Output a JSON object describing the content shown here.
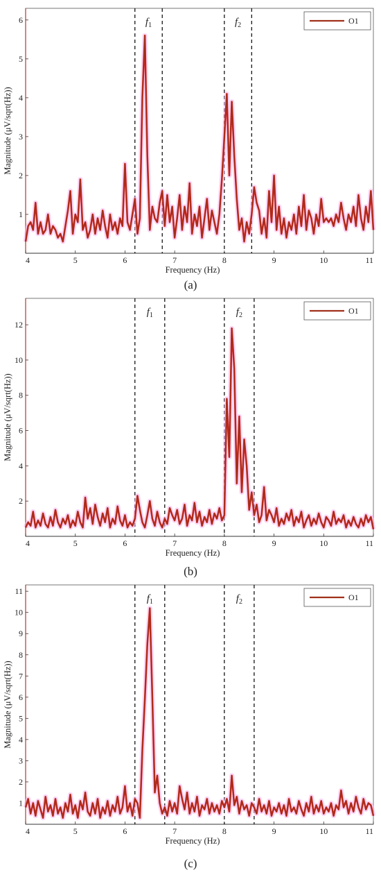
{
  "figure": {
    "panel_labels": [
      "(a)",
      "(b)",
      "(c)"
    ]
  },
  "colors": {
    "line": "#a0301a",
    "line_highlight": "#e0201e",
    "glow": "#f6b4f0",
    "axis": "#b23a2a",
    "box": "#555555",
    "band_line": "#000000"
  },
  "chart_data": [
    {
      "type": "line",
      "panel": "(a)",
      "xlabel": "Frequency (Hz)",
      "ylabel": "Magnitude  (μV/sqrt(Hz))",
      "xlim": [
        4,
        11
      ],
      "ylim": [
        0,
        6.3
      ],
      "xticks": [
        "4",
        "5",
        "6",
        "7",
        "8",
        "9",
        "10",
        "11"
      ],
      "yticks": [
        "1",
        "2",
        "3",
        "4",
        "5",
        "6"
      ],
      "legend": {
        "position": "top-right",
        "entries": [
          "O1"
        ]
      },
      "bands": [
        {
          "label": "f",
          "sub": "1",
          "from": 6.2,
          "to": 6.75
        },
        {
          "label": "f",
          "sub": "2",
          "from": 8.0,
          "to": 8.55
        }
      ],
      "series": [
        {
          "name": "O1",
          "x": [
            4.0,
            4.05,
            4.1,
            4.15,
            4.2,
            4.25,
            4.3,
            4.35,
            4.4,
            4.45,
            4.5,
            4.55,
            4.6,
            4.65,
            4.7,
            4.75,
            4.8,
            4.85,
            4.9,
            4.95,
            5.0,
            5.05,
            5.1,
            5.15,
            5.2,
            5.25,
            5.3,
            5.35,
            5.4,
            5.45,
            5.5,
            5.55,
            5.6,
            5.65,
            5.7,
            5.75,
            5.8,
            5.85,
            5.9,
            5.95,
            6.0,
            6.05,
            6.1,
            6.15,
            6.2,
            6.25,
            6.3,
            6.35,
            6.4,
            6.45,
            6.5,
            6.55,
            6.6,
            6.65,
            6.7,
            6.75,
            6.8,
            6.85,
            6.9,
            6.95,
            7.0,
            7.05,
            7.1,
            7.15,
            7.2,
            7.25,
            7.3,
            7.35,
            7.4,
            7.45,
            7.5,
            7.55,
            7.6,
            7.65,
            7.7,
            7.75,
            7.8,
            7.85,
            7.9,
            7.95,
            8.0,
            8.05,
            8.1,
            8.15,
            8.2,
            8.25,
            8.3,
            8.35,
            8.4,
            8.45,
            8.5,
            8.55,
            8.6,
            8.65,
            8.7,
            8.75,
            8.8,
            8.85,
            8.9,
            8.95,
            9.0,
            9.05,
            9.1,
            9.15,
            9.2,
            9.25,
            9.3,
            9.35,
            9.4,
            9.45,
            9.5,
            9.55,
            9.6,
            9.65,
            9.7,
            9.75,
            9.8,
            9.85,
            9.9,
            9.95,
            10.0,
            10.05,
            10.1,
            10.15,
            10.2,
            10.25,
            10.3,
            10.35,
            10.4,
            10.45,
            10.5,
            10.55,
            10.6,
            10.65,
            10.7,
            10.75,
            10.8,
            10.85,
            10.9,
            10.95,
            11.0
          ],
          "y": [
            0.3,
            0.7,
            0.8,
            0.6,
            1.3,
            0.5,
            0.8,
            0.5,
            0.6,
            1.0,
            0.5,
            0.7,
            0.6,
            0.4,
            0.5,
            0.3,
            0.7,
            1.1,
            1.6,
            0.5,
            1.0,
            0.8,
            1.9,
            0.6,
            0.8,
            0.4,
            0.6,
            1.0,
            0.5,
            0.9,
            0.6,
            1.1,
            0.7,
            0.4,
            1.0,
            0.6,
            0.8,
            0.5,
            0.9,
            0.7,
            2.3,
            0.8,
            0.6,
            1.0,
            1.4,
            0.5,
            0.9,
            4.0,
            5.6,
            2.5,
            0.6,
            1.2,
            0.9,
            0.8,
            1.3,
            1.6,
            0.7,
            1.5,
            0.8,
            1.2,
            0.4,
            0.9,
            1.5,
            0.6,
            1.2,
            0.8,
            1.8,
            0.5,
            1.0,
            0.7,
            1.2,
            0.4,
            0.9,
            1.4,
            0.6,
            1.1,
            0.8,
            0.5,
            1.0,
            1.9,
            3.0,
            4.1,
            2.0,
            3.9,
            2.5,
            1.4,
            0.6,
            0.9,
            0.3,
            0.8,
            0.5,
            1.0,
            1.7,
            1.3,
            1.1,
            0.5,
            0.9,
            0.4,
            1.6,
            0.8,
            2.0,
            0.6,
            1.2,
            0.5,
            0.9,
            0.4,
            0.8,
            0.6,
            1.0,
            0.5,
            1.2,
            0.7,
            1.5,
            0.6,
            1.1,
            0.9,
            0.5,
            1.0,
            0.7,
            1.4,
            0.8,
            0.9,
            0.8,
            0.9,
            0.7,
            1.0,
            0.8,
            1.3,
            0.9,
            0.6,
            1.0,
            0.8,
            1.2,
            0.7,
            1.5,
            0.9,
            0.6,
            1.2,
            0.8,
            1.6,
            0.6
          ]
        }
      ]
    },
    {
      "type": "line",
      "panel": "(b)",
      "xlabel": "Frequency (Hz)",
      "ylabel": "Magnitude  (μV/sqrt(Hz))",
      "xlim": [
        4,
        11
      ],
      "ylim": [
        0,
        13.5
      ],
      "xticks": [
        "4",
        "5",
        "6",
        "7",
        "8",
        "9",
        "10",
        "11"
      ],
      "yticks": [
        "2",
        "4",
        "6",
        "8",
        "10",
        "12"
      ],
      "legend": {
        "position": "top-right",
        "entries": [
          "O1"
        ]
      },
      "bands": [
        {
          "label": "f",
          "sub": "1",
          "from": 6.2,
          "to": 6.8
        },
        {
          "label": "f",
          "sub": "2",
          "from": 8.0,
          "to": 8.6
        }
      ],
      "series": [
        {
          "name": "O1",
          "x": [
            4.0,
            4.05,
            4.1,
            4.15,
            4.2,
            4.25,
            4.3,
            4.35,
            4.4,
            4.45,
            4.5,
            4.55,
            4.6,
            4.65,
            4.7,
            4.75,
            4.8,
            4.85,
            4.9,
            4.95,
            5.0,
            5.05,
            5.1,
            5.15,
            5.2,
            5.25,
            5.3,
            5.35,
            5.4,
            5.45,
            5.5,
            5.55,
            5.6,
            5.65,
            5.7,
            5.75,
            5.8,
            5.85,
            5.9,
            5.95,
            6.0,
            6.05,
            6.1,
            6.15,
            6.2,
            6.25,
            6.3,
            6.35,
            6.4,
            6.45,
            6.5,
            6.55,
            6.6,
            6.65,
            6.7,
            6.75,
            6.8,
            6.85,
            6.9,
            6.95,
            7.0,
            7.05,
            7.1,
            7.15,
            7.2,
            7.25,
            7.3,
            7.35,
            7.4,
            7.45,
            7.5,
            7.55,
            7.6,
            7.65,
            7.7,
            7.75,
            7.8,
            7.85,
            7.9,
            7.95,
            8.0,
            8.05,
            8.1,
            8.15,
            8.2,
            8.25,
            8.3,
            8.35,
            8.4,
            8.45,
            8.5,
            8.55,
            8.6,
            8.65,
            8.7,
            8.75,
            8.8,
            8.85,
            8.9,
            8.95,
            9.0,
            9.05,
            9.1,
            9.15,
            9.2,
            9.25,
            9.3,
            9.35,
            9.4,
            9.45,
            9.5,
            9.55,
            9.6,
            9.65,
            9.7,
            9.75,
            9.8,
            9.85,
            9.9,
            9.95,
            10.0,
            10.05,
            10.1,
            10.15,
            10.2,
            10.25,
            10.3,
            10.35,
            10.4,
            10.45,
            10.5,
            10.55,
            10.6,
            10.65,
            10.7,
            10.75,
            10.8,
            10.85,
            10.9,
            10.95,
            11.0
          ],
          "y": [
            0.5,
            0.8,
            0.6,
            1.4,
            0.5,
            0.9,
            0.6,
            1.3,
            0.7,
            0.5,
            1.1,
            0.6,
            1.5,
            0.8,
            0.5,
            1.0,
            0.7,
            1.2,
            0.5,
            0.9,
            0.6,
            1.4,
            0.8,
            0.5,
            2.2,
            1.0,
            1.6,
            0.7,
            1.8,
            1.1,
            0.6,
            1.3,
            0.8,
            1.6,
            0.5,
            1.0,
            0.7,
            1.7,
            0.9,
            0.6,
            1.2,
            0.5,
            0.8,
            0.6,
            1.0,
            2.3,
            1.5,
            0.8,
            0.5,
            1.2,
            2.0,
            1.0,
            0.6,
            1.4,
            0.8,
            0.5,
            1.0,
            0.7,
            1.6,
            1.2,
            0.9,
            1.5,
            0.7,
            1.0,
            1.8,
            0.6,
            1.2,
            0.9,
            1.9,
            0.8,
            1.4,
            0.6,
            1.1,
            0.8,
            1.5,
            0.7,
            1.3,
            1.0,
            1.6,
            0.9,
            1.2,
            7.8,
            4.5,
            11.8,
            9.5,
            3.0,
            6.8,
            2.5,
            5.5,
            4.0,
            1.5,
            2.5,
            1.2,
            1.8,
            0.8,
            1.2,
            2.8,
            0.9,
            1.5,
            1.2,
            0.8,
            1.6,
            0.6,
            1.0,
            0.7,
            1.3,
            0.9,
            1.5,
            0.6,
            1.1,
            0.8,
            1.4,
            0.5,
            0.9,
            1.2,
            0.6,
            1.0,
            0.7,
            1.3,
            0.8,
            0.5,
            1.1,
            0.9,
            0.6,
            1.4,
            0.7,
            1.0,
            0.8,
            1.2,
            0.5,
            0.9,
            0.6,
            1.1,
            0.7,
            0.5,
            1.0,
            0.6,
            1.2,
            0.8,
            1.1,
            0.4
          ]
        }
      ]
    },
    {
      "type": "line",
      "panel": "(c)",
      "xlabel": "Frequency (Hz)",
      "ylabel": "Magnitude  (μV/sqrt(Hz))",
      "xlim": [
        4,
        11
      ],
      "ylim": [
        0,
        11.3
      ],
      "xticks": [
        "4",
        "5",
        "6",
        "7",
        "8",
        "9",
        "10",
        "11"
      ],
      "yticks": [
        "1",
        "2",
        "3",
        "4",
        "5",
        "6",
        "7",
        "8",
        "9",
        "10",
        "11"
      ],
      "legend": {
        "position": "top-right",
        "entries": [
          "O1"
        ]
      },
      "bands": [
        {
          "label": "f",
          "sub": "1",
          "from": 6.2,
          "to": 6.8
        },
        {
          "label": "f",
          "sub": "2",
          "from": 8.0,
          "to": 8.6
        }
      ],
      "series": [
        {
          "name": "O1",
          "x": [
            4.0,
            4.05,
            4.1,
            4.15,
            4.2,
            4.25,
            4.3,
            4.35,
            4.4,
            4.45,
            4.5,
            4.55,
            4.6,
            4.65,
            4.7,
            4.75,
            4.8,
            4.85,
            4.9,
            4.95,
            5.0,
            5.05,
            5.1,
            5.15,
            5.2,
            5.25,
            5.3,
            5.35,
            5.4,
            5.45,
            5.5,
            5.55,
            5.6,
            5.65,
            5.7,
            5.75,
            5.8,
            5.85,
            5.9,
            5.95,
            6.0,
            6.05,
            6.1,
            6.15,
            6.2,
            6.25,
            6.3,
            6.35,
            6.4,
            6.45,
            6.5,
            6.55,
            6.6,
            6.65,
            6.7,
            6.75,
            6.8,
            6.85,
            6.9,
            6.95,
            7.0,
            7.05,
            7.1,
            7.15,
            7.2,
            7.25,
            7.3,
            7.35,
            7.4,
            7.45,
            7.5,
            7.55,
            7.6,
            7.65,
            7.7,
            7.75,
            7.8,
            7.85,
            7.9,
            7.95,
            8.0,
            8.05,
            8.1,
            8.15,
            8.2,
            8.25,
            8.3,
            8.35,
            8.4,
            8.45,
            8.5,
            8.55,
            8.6,
            8.65,
            8.7,
            8.75,
            8.8,
            8.85,
            8.9,
            8.95,
            9.0,
            9.05,
            9.1,
            9.15,
            9.2,
            9.25,
            9.3,
            9.35,
            9.4,
            9.45,
            9.5,
            9.55,
            9.6,
            9.65,
            9.7,
            9.75,
            9.8,
            9.85,
            9.9,
            9.95,
            10.0,
            10.05,
            10.1,
            10.15,
            10.2,
            10.25,
            10.3,
            10.35,
            10.4,
            10.45,
            10.5,
            10.55,
            10.6,
            10.65,
            10.7,
            10.75,
            10.8,
            10.85,
            10.9,
            10.95,
            11.0
          ],
          "y": [
            0.8,
            1.2,
            0.5,
            1.0,
            0.4,
            1.1,
            0.7,
            0.3,
            1.3,
            0.6,
            0.9,
            0.4,
            1.2,
            0.5,
            0.8,
            0.3,
            1.0,
            0.6,
            1.4,
            0.5,
            0.9,
            0.3,
            1.1,
            0.7,
            1.5,
            0.6,
            0.4,
            1.0,
            0.5,
            1.2,
            0.3,
            0.8,
            0.5,
            1.1,
            0.4,
            0.9,
            0.6,
            1.3,
            0.5,
            0.8,
            1.8,
            0.6,
            1.0,
            0.4,
            1.2,
            1.0,
            0.3,
            3.5,
            5.9,
            8.5,
            10.2,
            6.0,
            1.5,
            2.3,
            1.0,
            0.5,
            0.8,
            0.4,
            1.1,
            0.6,
            1.0,
            0.5,
            1.8,
            1.2,
            0.7,
            1.5,
            0.5,
            1.0,
            0.6,
            1.3,
            0.4,
            0.9,
            0.7,
            1.2,
            0.5,
            1.0,
            0.6,
            0.9,
            0.5,
            1.1,
            0.8,
            1.2,
            0.6,
            2.3,
            0.9,
            1.3,
            0.5,
            1.1,
            0.7,
            0.9,
            0.4,
            1.0,
            0.8,
            0.5,
            1.2,
            0.6,
            0.9,
            0.5,
            1.1,
            0.4,
            0.8,
            0.6,
            1.0,
            0.5,
            0.9,
            0.4,
            1.2,
            0.6,
            0.8,
            0.5,
            1.1,
            0.7,
            0.4,
            1.0,
            0.6,
            1.3,
            0.5,
            0.9,
            0.6,
            1.1,
            0.5,
            0.8,
            0.6,
            1.0,
            0.4,
            0.9,
            0.7,
            1.6,
            0.8,
            1.1,
            0.5,
            1.0,
            0.6,
            1.3,
            0.8,
            0.5,
            1.2,
            0.7,
            1.0,
            0.9,
            0.4
          ]
        }
      ]
    }
  ]
}
